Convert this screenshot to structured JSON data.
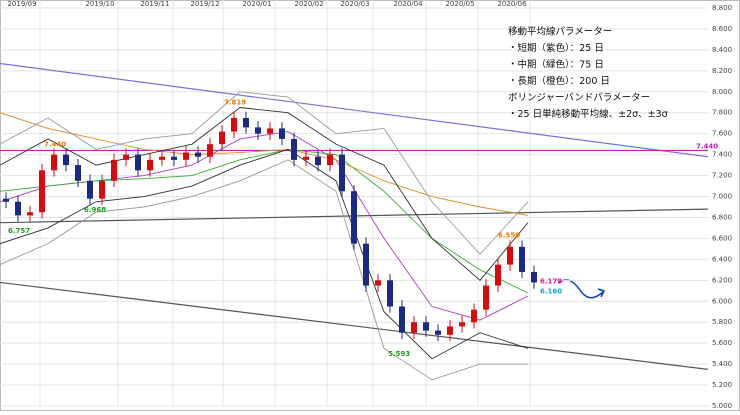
{
  "chart_data": {
    "type": "candlestick",
    "xlim": [
      0,
      708
    ],
    "xticks": [
      {
        "value": 22,
        "label": "2019/09"
      },
      {
        "value": 100,
        "label": "2019/10"
      },
      {
        "value": 155,
        "label": "2019/11"
      },
      {
        "value": 205,
        "label": "2019/12"
      },
      {
        "value": 257,
        "label": "2020/01"
      },
      {
        "value": 309,
        "label": "2020/02"
      },
      {
        "value": 355,
        "label": "2020/03"
      },
      {
        "value": 408,
        "label": "2020/04"
      },
      {
        "value": 460,
        "label": "2020/05"
      },
      {
        "value": 512,
        "label": "2020/06"
      }
    ],
    "ylim": [
      5.0,
      8.8
    ],
    "yticks": [
      {
        "value": 8.8,
        "label": "8.800"
      },
      {
        "value": 8.6,
        "label": "8.600"
      },
      {
        "value": 8.4,
        "label": "8.400"
      },
      {
        "value": 8.2,
        "label": "8.200"
      },
      {
        "value": 8.0,
        "label": "8.000"
      },
      {
        "value": 7.8,
        "label": "7.800"
      },
      {
        "value": 7.6,
        "label": "7.600"
      },
      {
        "value": 7.4,
        "label": "7.400"
      },
      {
        "value": 7.2,
        "label": "7.200"
      },
      {
        "value": 7.0,
        "label": "7.000"
      },
      {
        "value": 6.8,
        "label": "6.800"
      },
      {
        "value": 6.6,
        "label": "6.600"
      },
      {
        "value": 6.4,
        "label": "6.400"
      },
      {
        "value": 6.2,
        "label": "6.200"
      },
      {
        "value": 6.0,
        "label": "6.000"
      },
      {
        "value": 5.8,
        "label": "5.800"
      },
      {
        "value": 5.6,
        "label": "5.600"
      },
      {
        "value": 5.4,
        "label": "5.400"
      },
      {
        "value": 5.2,
        "label": "5.200"
      },
      {
        "value": 5.0,
        "label": "5.000"
      }
    ],
    "grid": true,
    "up_color": "#d01010",
    "down_color": "#1c2a80",
    "x": [
      6,
      18,
      30,
      42,
      54,
      66,
      78,
      90,
      102,
      114,
      126,
      138,
      150,
      162,
      174,
      186,
      198,
      210,
      222,
      234,
      246,
      258,
      270,
      282,
      294,
      306,
      318,
      330,
      342,
      354,
      366,
      378,
      390,
      402,
      414,
      426,
      438,
      450,
      462,
      474,
      486,
      498,
      510,
      522,
      534
    ],
    "open": [
      6.98,
      6.95,
      6.82,
      6.85,
      7.25,
      7.4,
      7.3,
      7.15,
      6.98,
      7.15,
      7.35,
      7.4,
      7.25,
      7.35,
      7.38,
      7.35,
      7.42,
      7.38,
      7.5,
      7.62,
      7.75,
      7.66,
      7.6,
      7.65,
      7.55,
      7.35,
      7.38,
      7.3,
      7.4,
      7.05,
      6.55,
      6.15,
      6.2,
      5.95,
      5.7,
      5.8,
      5.72,
      5.68,
      5.76,
      5.8,
      5.92,
      6.15,
      6.35,
      6.52,
      6.28
    ],
    "high": [
      7.04,
      7.01,
      6.91,
      7.31,
      7.46,
      7.46,
      7.36,
      7.21,
      7.21,
      7.41,
      7.46,
      7.46,
      7.41,
      7.44,
      7.44,
      7.48,
      7.48,
      7.56,
      7.68,
      7.81,
      7.81,
      7.72,
      7.71,
      7.71,
      7.61,
      7.44,
      7.44,
      7.46,
      7.46,
      7.11,
      6.61,
      6.26,
      6.26,
      6.01,
      5.86,
      5.86,
      5.78,
      5.82,
      5.86,
      5.98,
      6.21,
      6.41,
      6.58,
      6.58,
      6.34
    ],
    "low": [
      6.89,
      6.76,
      6.76,
      6.79,
      7.19,
      7.24,
      7.09,
      6.92,
      6.92,
      7.09,
      7.29,
      7.19,
      7.19,
      7.29,
      7.29,
      7.29,
      7.32,
      7.32,
      7.44,
      7.56,
      7.6,
      7.54,
      7.54,
      7.49,
      7.29,
      7.29,
      7.24,
      7.24,
      6.99,
      6.49,
      6.09,
      6.09,
      5.89,
      5.64,
      5.64,
      5.66,
      5.62,
      5.62,
      5.7,
      5.74,
      5.86,
      6.09,
      6.29,
      6.22,
      6.12
    ],
    "close": [
      6.95,
      6.82,
      6.85,
      7.25,
      7.4,
      7.3,
      7.15,
      6.98,
      7.15,
      7.35,
      7.4,
      7.25,
      7.35,
      7.38,
      7.35,
      7.42,
      7.38,
      7.5,
      7.62,
      7.75,
      7.66,
      7.6,
      7.65,
      7.55,
      7.35,
      7.38,
      7.3,
      7.4,
      7.05,
      6.55,
      6.15,
      6.2,
      5.95,
      5.7,
      5.8,
      5.72,
      5.68,
      5.76,
      5.8,
      5.92,
      6.15,
      6.35,
      6.52,
      6.28,
      6.18
    ],
    "lines_x": [
      0,
      48,
      96,
      144,
      192,
      240,
      288,
      336,
      384,
      432,
      480,
      528
    ],
    "lines": [
      {
        "color": "#b03cc8",
        "values": [
          6.95,
          7.1,
          7.15,
          7.2,
          7.3,
          7.55,
          7.62,
          7.35,
          6.6,
          5.95,
          5.82,
          6.05
        ]
      },
      {
        "color": "#3aaa3a",
        "values": [
          7.05,
          7.1,
          7.15,
          7.17,
          7.2,
          7.35,
          7.45,
          7.4,
          7.05,
          6.6,
          6.3,
          6.08
        ]
      },
      {
        "color": "#e08a2a",
        "values": [
          7.8,
          7.65,
          7.55,
          7.45,
          7.4,
          7.42,
          7.45,
          7.35,
          7.15,
          7.0,
          6.9,
          6.82
        ]
      },
      {
        "color": "#333333",
        "values": [
          7.3,
          7.55,
          7.3,
          7.4,
          7.5,
          7.85,
          7.8,
          7.5,
          7.3,
          6.6,
          6.2,
          6.75
        ]
      },
      {
        "color": "#333333",
        "values": [
          6.55,
          6.7,
          6.95,
          7.0,
          7.1,
          7.3,
          7.45,
          7.15,
          5.9,
          5.45,
          5.7,
          5.55
        ]
      },
      {
        "color": "#999999",
        "values": [
          7.5,
          7.75,
          7.45,
          7.55,
          7.6,
          8.0,
          7.95,
          7.6,
          7.65,
          6.95,
          6.45,
          6.95
        ]
      },
      {
        "color": "#999999",
        "values": [
          6.35,
          6.55,
          6.85,
          6.9,
          7.0,
          7.15,
          7.35,
          7.05,
          5.55,
          5.25,
          5.4,
          5.4
        ]
      }
    ],
    "trend_lines": [
      {
        "color": "#7b72d8",
        "x": [
          0,
          708
        ],
        "values": [
          8.27,
          7.38
        ]
      },
      {
        "color": "#c020c0",
        "x": [
          0,
          708
        ],
        "values": [
          7.44,
          7.44
        ]
      },
      {
        "color": "#555555",
        "x": [
          0,
          708
        ],
        "values": [
          6.75,
          6.88
        ]
      },
      {
        "color": "#555555",
        "x": [
          0,
          708
        ],
        "values": [
          6.18,
          5.35
        ]
      }
    ],
    "price_labels": [
      {
        "label": "7.440",
        "value": 7.44,
        "color": "#e07b00"
      },
      {
        "label": "6.757",
        "value": 6.757,
        "color": "#1aa01a"
      },
      {
        "label": "6.968",
        "value": 6.968,
        "color": "#1aa01a"
      },
      {
        "label": "7.819",
        "value": 7.819,
        "color": "#e07b00"
      },
      {
        "label": "5.593",
        "value": 5.593,
        "color": "#1aa01a"
      },
      {
        "label": "6.550",
        "value": 6.55,
        "color": "#e07b00"
      },
      {
        "label": "6.179",
        "value": 6.179,
        "color": "#e0208a"
      },
      {
        "label": "6.160",
        "value": 6.16,
        "color": "#1aa0d0"
      },
      {
        "label": "7.440",
        "value": 7.44,
        "color": "#c020c0"
      }
    ],
    "note": [
      "移動平均線パラメーター",
      "・短期（紫色）：25 日",
      "・中期（緑色）：75 日",
      "・長期（橙色）：200 日",
      "ボリンジャーバンドパラメーター",
      "・25 日単純移動平均線、±2σ、±3σ"
    ]
  }
}
